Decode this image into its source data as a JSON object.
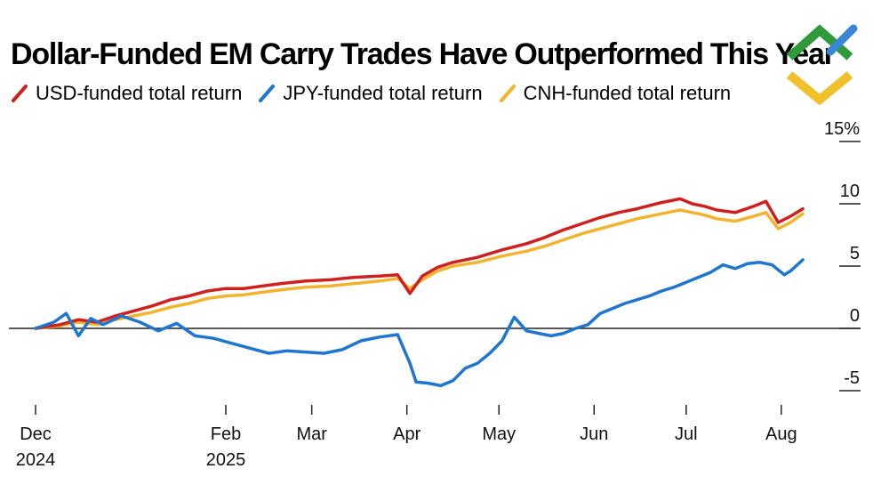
{
  "header": {
    "title": "Dollar-Funded EM Carry Trades Have Outperformed This Year"
  },
  "legend": [
    {
      "label": "USD-funded total return",
      "color": "#d01f1f"
    },
    {
      "label": "JPY-funded total return",
      "color": "#1f76d0"
    },
    {
      "label": "CNH-funded total return",
      "color": "#f2b32d"
    }
  ],
  "logo": {
    "icon": "green-yellow-chevron-logo-icon",
    "colors": [
      "#2e9a3a",
      "#f2c02b",
      "#3a85d6"
    ]
  },
  "chart_data": {
    "type": "line",
    "title": "Dollar-Funded EM Carry Trades Have Outperformed This Year",
    "xlabel": "",
    "ylabel": "",
    "ylim": [
      -7,
      15
    ],
    "yticks": [
      -5,
      0,
      5,
      10,
      15
    ],
    "ytick_labels": [
      "-5",
      "0",
      "5",
      "10",
      "15%"
    ],
    "xticks": [
      {
        "day": 0,
        "label": [
          "Dec",
          "2024"
        ]
      },
      {
        "day": 62,
        "label": [
          "Feb",
          "2025"
        ]
      },
      {
        "day": 90,
        "label": [
          "Mar"
        ]
      },
      {
        "day": 121,
        "label": [
          "Apr"
        ]
      },
      {
        "day": 151,
        "label": [
          "May"
        ]
      },
      {
        "day": 182,
        "label": [
          "Jun"
        ]
      },
      {
        "day": 212,
        "label": [
          "Jul"
        ]
      },
      {
        "day": 243,
        "label": [
          "Aug"
        ]
      }
    ],
    "xlim": [
      0,
      253
    ],
    "series": [
      {
        "name": "USD-funded total return",
        "color": "#d01f1f",
        "x": [
          0,
          8,
          14,
          20,
          26,
          32,
          38,
          44,
          50,
          56,
          62,
          68,
          74,
          80,
          88,
          96,
          104,
          112,
          118,
          122,
          126,
          131,
          136,
          144,
          152,
          160,
          166,
          172,
          178,
          184,
          190,
          196,
          204,
          210,
          214,
          218,
          222,
          228,
          234,
          238,
          242,
          246,
          250
        ],
        "y": [
          0,
          0.3,
          0.7,
          0.5,
          1.0,
          1.4,
          1.8,
          2.3,
          2.6,
          3.0,
          3.2,
          3.2,
          3.4,
          3.6,
          3.8,
          3.9,
          4.1,
          4.2,
          4.3,
          2.8,
          4.2,
          4.9,
          5.3,
          5.7,
          6.3,
          6.8,
          7.3,
          7.9,
          8.4,
          8.9,
          9.3,
          9.6,
          10.1,
          10.4,
          10.0,
          9.8,
          9.5,
          9.3,
          9.8,
          10.2,
          8.5,
          9.0,
          9.6
        ]
      },
      {
        "name": "JPY-funded total return",
        "color": "#1f76d0",
        "x": [
          0,
          6,
          10,
          14,
          18,
          22,
          28,
          34,
          40,
          46,
          52,
          58,
          64,
          70,
          76,
          82,
          88,
          94,
          100,
          106,
          112,
          118,
          122,
          124,
          128,
          132,
          136,
          140,
          144,
          148,
          152,
          156,
          160,
          164,
          168,
          172,
          176,
          180,
          184,
          188,
          192,
          196,
          200,
          204,
          208,
          212,
          216,
          220,
          224,
          228,
          232,
          236,
          240,
          244,
          246,
          250
        ],
        "y": [
          0,
          0.5,
          1.2,
          -0.6,
          0.8,
          0.3,
          1.0,
          0.5,
          -0.2,
          0.4,
          -0.6,
          -0.8,
          -1.2,
          -1.6,
          -2.0,
          -1.8,
          -1.9,
          -2.0,
          -1.7,
          -1.0,
          -0.7,
          -0.5,
          -2.8,
          -4.3,
          -4.4,
          -4.6,
          -4.2,
          -3.2,
          -2.8,
          -2.0,
          -1.0,
          0.9,
          -0.2,
          -0.4,
          -0.6,
          -0.4,
          0.0,
          0.3,
          1.2,
          1.6,
          2.0,
          2.3,
          2.6,
          3.0,
          3.3,
          3.7,
          4.1,
          4.5,
          5.1,
          4.8,
          5.2,
          5.3,
          5.1,
          4.3,
          4.6,
          5.5
        ]
      },
      {
        "name": "CNH-funded total return",
        "color": "#f2b32d",
        "x": [
          0,
          8,
          14,
          20,
          26,
          32,
          38,
          44,
          50,
          56,
          62,
          68,
          74,
          80,
          88,
          96,
          104,
          112,
          118,
          122,
          126,
          131,
          136,
          144,
          152,
          160,
          166,
          172,
          178,
          184,
          190,
          196,
          204,
          210,
          214,
          218,
          222,
          228,
          234,
          238,
          242,
          246,
          250
        ],
        "y": [
          0,
          0.2,
          0.5,
          0.3,
          0.7,
          1.0,
          1.3,
          1.7,
          2.0,
          2.4,
          2.6,
          2.7,
          2.9,
          3.1,
          3.3,
          3.4,
          3.6,
          3.8,
          4.0,
          3.2,
          3.9,
          4.6,
          5.0,
          5.3,
          5.8,
          6.2,
          6.6,
          7.1,
          7.6,
          8.0,
          8.4,
          8.8,
          9.2,
          9.5,
          9.3,
          9.1,
          8.8,
          8.6,
          9.0,
          9.3,
          8.0,
          8.5,
          9.2
        ]
      }
    ]
  }
}
